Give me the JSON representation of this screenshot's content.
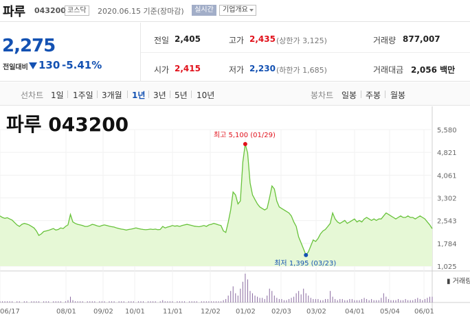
{
  "header": {
    "name": "파루",
    "code": "043200",
    "market": "코스닥",
    "date": "2020.06.15 기준(장마감)",
    "realtime": "실시간",
    "overview": "기업개요"
  },
  "summary": {
    "current": "2,275",
    "diff_label": "전일대비",
    "diff": "130",
    "rate": "-5.41%",
    "prev_label": "전일",
    "prev": "2,405",
    "high_label": "고가",
    "high": "2,435",
    "upper_limit": "(상한가 3,125)",
    "volume_label": "거래량",
    "volume": "877,007",
    "open_label": "시가",
    "open": "2,415",
    "low_label": "저가",
    "low": "2,230",
    "lower_limit": "(하한가 1,685)",
    "amount_label": "거래대금",
    "amount": "2,056 백만"
  },
  "tabs": {
    "line_label": "선차트",
    "periods": [
      "1일",
      "1주일",
      "3개월",
      "1년",
      "3년",
      "5년",
      "10년"
    ],
    "active": "1년",
    "candle_label": "봉차트",
    "candles": [
      "일봉",
      "주봉",
      "월봉"
    ]
  },
  "chart_data": {
    "type": "area",
    "title": "파루 043200",
    "x_ticks": [
      "06/17",
      "08/01",
      "09/02",
      "10/01",
      "11/01",
      "12/02",
      "01/02",
      "02/03",
      "03/02",
      "04/01",
      "05/04",
      "06/01"
    ],
    "y_ticks": [
      5580,
      4821,
      4061,
      3302,
      2543,
      1784,
      1025
    ],
    "ylim": [
      1025,
      5580
    ],
    "high_annotation": "최고 5,100 (01/29)",
    "low_annotation": "최저 1,395 (03/23)",
    "volume_label": "거래량",
    "prices": [
      2700,
      2650,
      2620,
      2640,
      2600,
      2560,
      2480,
      2400,
      2350,
      2420,
      2450,
      2430,
      2400,
      2350,
      2300,
      2200,
      2050,
      2100,
      2180,
      2200,
      2220,
      2250,
      2280,
      2230,
      2250,
      2300,
      2280,
      2350,
      2400,
      2750,
      2500,
      2450,
      2420,
      2400,
      2380,
      2350,
      2350,
      2380,
      2420,
      2400,
      2370,
      2350,
      2380,
      2400,
      2380,
      2360,
      2340,
      2330,
      2300,
      2280,
      2260,
      2250,
      2230,
      2250,
      2260,
      2280,
      2300,
      2280,
      2260,
      2250,
      2240,
      2250,
      2260,
      2250,
      2260,
      2240,
      2250,
      2350,
      2300,
      2330,
      2350,
      2380,
      2360,
      2370,
      2350,
      2380,
      2400,
      2420,
      2400,
      2380,
      2360,
      2350,
      2340,
      2360,
      2380,
      2350,
      2400,
      2420,
      2450,
      2430,
      2400,
      2380,
      2200,
      2150,
      2500,
      2900,
      3500,
      3400,
      3100,
      3200,
      4500,
      5100,
      4800,
      3800,
      3400,
      3250,
      3100,
      3000,
      2950,
      2900,
      2950,
      3300,
      3700,
      3600,
      3200,
      3000,
      2950,
      2900,
      2850,
      2800,
      2700,
      2500,
      2350,
      2000,
      1800,
      1600,
      1395,
      1500,
      1700,
      1900,
      1850,
      1950,
      2100,
      2200,
      2250,
      2350,
      2450,
      2800,
      2600,
      2500,
      2450,
      2500,
      2550,
      2450,
      2500,
      2550,
      2600,
      2500,
      2550,
      2500,
      2600,
      2650,
      2600,
      2550,
      2600,
      2550,
      2600,
      2600,
      2700,
      2800,
      2750,
      2700,
      2650,
      2600,
      2650,
      2700,
      2650,
      2650,
      2700,
      2650,
      2650,
      2600,
      2650,
      2700,
      2650,
      2600,
      2500,
      2400,
      2275
    ],
    "volumes": [
      1,
      1,
      1,
      1,
      1,
      1,
      0,
      1,
      1,
      0,
      1,
      1,
      0,
      1,
      1,
      1,
      1,
      0,
      1,
      1,
      1,
      0,
      1,
      1,
      1,
      1,
      0,
      1,
      2,
      5,
      2,
      1,
      1,
      1,
      1,
      0,
      1,
      1,
      1,
      1,
      0,
      1,
      1,
      1,
      0,
      1,
      1,
      1,
      0,
      1,
      1,
      1,
      0,
      1,
      1,
      1,
      0,
      1,
      1,
      1,
      0,
      1,
      1,
      1,
      1,
      0,
      1,
      2,
      1,
      1,
      1,
      1,
      0,
      1,
      1,
      1,
      1,
      0,
      1,
      1,
      1,
      1,
      0,
      1,
      1,
      1,
      1,
      1,
      1,
      1,
      1,
      1,
      2,
      3,
      6,
      10,
      14,
      8,
      6,
      12,
      18,
      25,
      20,
      10,
      8,
      6,
      5,
      4,
      4,
      3,
      6,
      12,
      10,
      6,
      4,
      3,
      3,
      2,
      2,
      3,
      4,
      5,
      8,
      10,
      7,
      12,
      8,
      6,
      4,
      3,
      3,
      3,
      2,
      2,
      3,
      3,
      10,
      5,
      3,
      2,
      3,
      3,
      2,
      2,
      3,
      3,
      2,
      2,
      2,
      3,
      4,
      3,
      2,
      3,
      2,
      2,
      2,
      4,
      8,
      5,
      3,
      2,
      2,
      2,
      3,
      2,
      2,
      3,
      2,
      2,
      2,
      3,
      4,
      3,
      2,
      3,
      4,
      5,
      5
    ]
  },
  "colors": {
    "accent_blue": "#1351b2",
    "up_red": "#e1111b",
    "line_green": "#67c23a",
    "area_fill": "#e6f8d6"
  }
}
